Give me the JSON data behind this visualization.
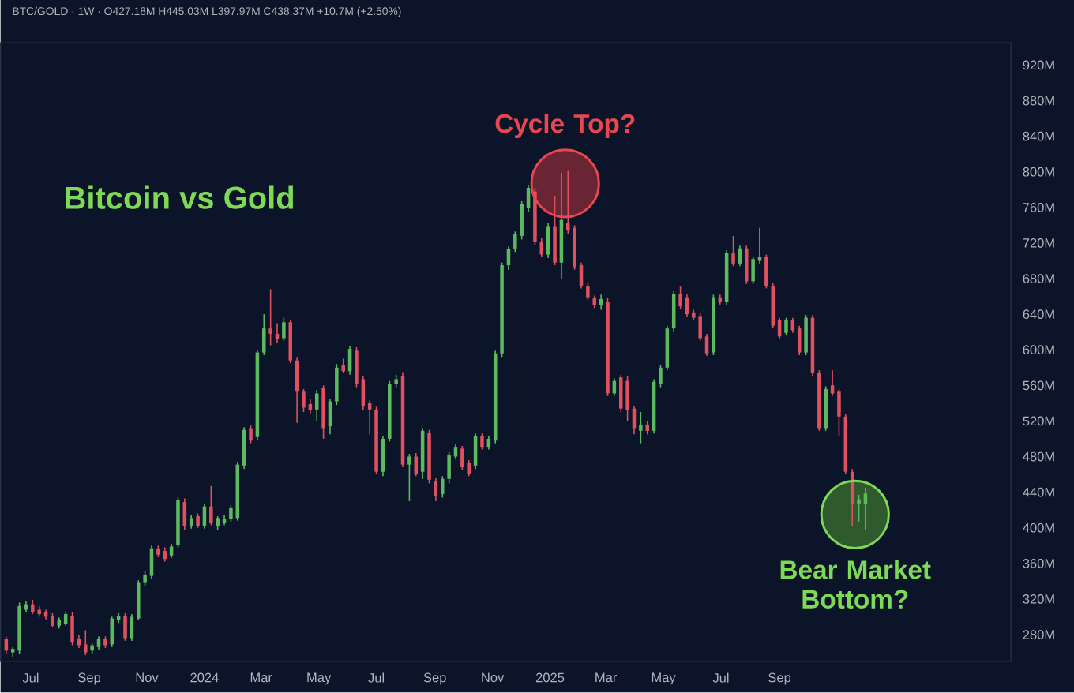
{
  "chart_data": {
    "type": "candlestick",
    "title": "Bitcoin vs Gold",
    "subtitle": "BTC/GOLD · 1W · O427.18M H445.03M L397.97M C438.37M +10.7M (+2.50%)",
    "annotations": [
      {
        "text": "Cycle Top?",
        "x": "2025-01-17",
        "y": 787
      },
      {
        "text": "Bear Market Bottom?",
        "x": "2025-11-20",
        "y": 415
      }
    ],
    "x": [
      "2023-06-05",
      "2023-06-12",
      "2023-06-19",
      "2023-06-26",
      "2023-07-03",
      "2023-07-10",
      "2023-07-17",
      "2023-07-24",
      "2023-07-31",
      "2023-08-07",
      "2023-08-14",
      "2023-08-21",
      "2023-08-28",
      "2023-09-04",
      "2023-09-11",
      "2023-09-18",
      "2023-09-25",
      "2023-10-02",
      "2023-10-09",
      "2023-10-16",
      "2023-10-23",
      "2023-10-30",
      "2023-11-06",
      "2023-11-13",
      "2023-11-20",
      "2023-11-27",
      "2023-12-04",
      "2023-12-11",
      "2023-12-18",
      "2023-12-25",
      "2024-01-01",
      "2024-01-08",
      "2024-01-15",
      "2024-01-22",
      "2024-01-29",
      "2024-02-05",
      "2024-02-12",
      "2024-02-19",
      "2024-02-26",
      "2024-03-04",
      "2024-03-11",
      "2024-03-18",
      "2024-03-25",
      "2024-04-01",
      "2024-04-08",
      "2024-04-15",
      "2024-04-22",
      "2024-04-29",
      "2024-05-06",
      "2024-05-13",
      "2024-05-20",
      "2024-05-27",
      "2024-06-03",
      "2024-06-10",
      "2024-06-17",
      "2024-06-24",
      "2024-07-01",
      "2024-07-08",
      "2024-07-15",
      "2024-07-22",
      "2024-07-29",
      "2024-08-05",
      "2024-08-12",
      "2024-08-19",
      "2024-08-26",
      "2024-09-02",
      "2024-09-09",
      "2024-09-16",
      "2024-09-23",
      "2024-09-30",
      "2024-10-07",
      "2024-10-14",
      "2024-10-21",
      "2024-10-28",
      "2024-11-04",
      "2024-11-11",
      "2024-11-18",
      "2024-11-25",
      "2024-12-02",
      "2024-12-09",
      "2024-12-16",
      "2024-12-23",
      "2024-12-30",
      "2025-01-06",
      "2025-01-13",
      "2025-01-20",
      "2025-01-27",
      "2025-02-03",
      "2025-02-10",
      "2025-02-17",
      "2025-02-24",
      "2025-03-03",
      "2025-03-10",
      "2025-03-17",
      "2025-03-24",
      "2025-03-31",
      "2025-04-07",
      "2025-04-14",
      "2025-04-21",
      "2025-04-28",
      "2025-05-05",
      "2025-05-12",
      "2025-05-19",
      "2025-05-26",
      "2025-06-02",
      "2025-06-09",
      "2025-06-16",
      "2025-06-23",
      "2025-06-30",
      "2025-07-07",
      "2025-07-14",
      "2025-07-21",
      "2025-07-28",
      "2025-08-04",
      "2025-08-11",
      "2025-08-18",
      "2025-08-25",
      "2025-09-01",
      "2025-09-08",
      "2025-09-15",
      "2025-09-22",
      "2025-09-29",
      "2025-10-06",
      "2025-10-13",
      "2025-10-20",
      "2025-10-27",
      "2025-11-03",
      "2025-11-10",
      "2025-11-17",
      "2025-11-24",
      "2025-12-01"
    ],
    "ohlc": [
      [
        275,
        278,
        258,
        262
      ],
      [
        260,
        266,
        255,
        264
      ],
      [
        262,
        316,
        258,
        312
      ],
      [
        308,
        318,
        305,
        314
      ],
      [
        314,
        319,
        303,
        305
      ],
      [
        308,
        312,
        300,
        303
      ],
      [
        305,
        308,
        297,
        300
      ],
      [
        301,
        304,
        288,
        290
      ],
      [
        290,
        299,
        287,
        296
      ],
      [
        292,
        306,
        290,
        303
      ],
      [
        301,
        305,
        268,
        271
      ],
      [
        275,
        280,
        265,
        268
      ],
      [
        269,
        285,
        257,
        260
      ],
      [
        262,
        270,
        258,
        268
      ],
      [
        266,
        278,
        263,
        275
      ],
      [
        275,
        278,
        265,
        268
      ],
      [
        269,
        300,
        266,
        298
      ],
      [
        296,
        304,
        293,
        301
      ],
      [
        301,
        304,
        273,
        276
      ],
      [
        276,
        303,
        273,
        300
      ],
      [
        298,
        341,
        296,
        338
      ],
      [
        338,
        352,
        335,
        347
      ],
      [
        346,
        380,
        343,
        377
      ],
      [
        376,
        380,
        367,
        370
      ],
      [
        374,
        378,
        362,
        365
      ],
      [
        369,
        382,
        366,
        379
      ],
      [
        381,
        434,
        378,
        431
      ],
      [
        429,
        433,
        398,
        402
      ],
      [
        402,
        414,
        399,
        411
      ],
      [
        413,
        416,
        400,
        402
      ],
      [
        402,
        427,
        399,
        424
      ],
      [
        424,
        447,
        403,
        406
      ],
      [
        402,
        413,
        398,
        411
      ],
      [
        406,
        414,
        403,
        410
      ],
      [
        410,
        425,
        407,
        422
      ],
      [
        411,
        474,
        408,
        471
      ],
      [
        470,
        513,
        466,
        510
      ],
      [
        512,
        515,
        495,
        498
      ],
      [
        502,
        600,
        498,
        597
      ],
      [
        597,
        640,
        594,
        624
      ],
      [
        624,
        668,
        605,
        618
      ],
      [
        618,
        630,
        608,
        612
      ],
      [
        613,
        636,
        610,
        631
      ],
      [
        631,
        634,
        585,
        588
      ],
      [
        588,
        592,
        518,
        553
      ],
      [
        553,
        556,
        530,
        535
      ],
      [
        539,
        545,
        528,
        532
      ],
      [
        533,
        555,
        520,
        551
      ],
      [
        557,
        560,
        500,
        512
      ],
      [
        514,
        545,
        505,
        542
      ],
      [
        542,
        584,
        538,
        580
      ],
      [
        583,
        590,
        574,
        576
      ],
      [
        576,
        604,
        572,
        601
      ],
      [
        599,
        603,
        558,
        562
      ],
      [
        567,
        570,
        532,
        537
      ],
      [
        540,
        543,
        505,
        533
      ],
      [
        533,
        536,
        460,
        463
      ],
      [
        463,
        503,
        458,
        500
      ],
      [
        500,
        565,
        497,
        562
      ],
      [
        562,
        572,
        558,
        567
      ],
      [
        571,
        575,
        468,
        471
      ],
      [
        471,
        483,
        430,
        480
      ],
      [
        480,
        484,
        458,
        461
      ],
      [
        463,
        512,
        455,
        509
      ],
      [
        507,
        510,
        450,
        454
      ],
      [
        452,
        456,
        430,
        436
      ],
      [
        438,
        458,
        434,
        455
      ],
      [
        455,
        485,
        450,
        482
      ],
      [
        480,
        494,
        477,
        491
      ],
      [
        489,
        492,
        465,
        468
      ],
      [
        473,
        476,
        458,
        461
      ],
      [
        470,
        506,
        466,
        503
      ],
      [
        503,
        506,
        488,
        491
      ],
      [
        491,
        503,
        488,
        500
      ],
      [
        498,
        599,
        495,
        596
      ],
      [
        596,
        698,
        592,
        695
      ],
      [
        695,
        716,
        690,
        713
      ],
      [
        713,
        733,
        710,
        730
      ],
      [
        728,
        767,
        724,
        764
      ],
      [
        759,
        785,
        755,
        782
      ],
      [
        778,
        782,
        718,
        721
      ],
      [
        721,
        726,
        704,
        707
      ],
      [
        707,
        742,
        703,
        739
      ],
      [
        739,
        773,
        695,
        698
      ],
      [
        698,
        799,
        680,
        746
      ],
      [
        743,
        801,
        730,
        734
      ],
      [
        737,
        740,
        690,
        693
      ],
      [
        695,
        698,
        669,
        672
      ],
      [
        672,
        675,
        656,
        659
      ],
      [
        658,
        661,
        647,
        650
      ],
      [
        650,
        662,
        645,
        657
      ],
      [
        654,
        658,
        548,
        551
      ],
      [
        551,
        568,
        548,
        565
      ],
      [
        569,
        572,
        530,
        534
      ],
      [
        565,
        570,
        520,
        532
      ],
      [
        534,
        537,
        505,
        512
      ],
      [
        509,
        530,
        495,
        516
      ],
      [
        516,
        520,
        505,
        509
      ],
      [
        509,
        567,
        506,
        564
      ],
      [
        562,
        583,
        558,
        580
      ],
      [
        580,
        627,
        577,
        624
      ],
      [
        624,
        666,
        620,
        663
      ],
      [
        663,
        672,
        646,
        649
      ],
      [
        659,
        662,
        637,
        640
      ],
      [
        642,
        645,
        633,
        636
      ],
      [
        638,
        641,
        610,
        613
      ],
      [
        615,
        618,
        593,
        596
      ],
      [
        597,
        662,
        594,
        659
      ],
      [
        659,
        662,
        651,
        654
      ],
      [
        654,
        712,
        650,
        709
      ],
      [
        709,
        728,
        694,
        697
      ],
      [
        697,
        717,
        694,
        714
      ],
      [
        714,
        717,
        674,
        677
      ],
      [
        677,
        705,
        674,
        702
      ],
      [
        700,
        737,
        697,
        704
      ],
      [
        704,
        707,
        669,
        672
      ],
      [
        672,
        675,
        624,
        627
      ],
      [
        633,
        636,
        612,
        615
      ],
      [
        619,
        636,
        616,
        633
      ],
      [
        633,
        636,
        619,
        622
      ],
      [
        624,
        627,
        594,
        597
      ],
      [
        597,
        639,
        594,
        636
      ],
      [
        636,
        639,
        571,
        574
      ],
      [
        574,
        577,
        509,
        512
      ],
      [
        512,
        559,
        509,
        556
      ],
      [
        560,
        577,
        548,
        551
      ],
      [
        553,
        556,
        503,
        525
      ],
      [
        525,
        528,
        460,
        463
      ],
      [
        463,
        466,
        402,
        427
      ],
      [
        427,
        437,
        407,
        432
      ],
      [
        427.18,
        445.03,
        397.97,
        438.37
      ]
    ],
    "xlim": [
      "2023-05-30",
      "2026-05-04"
    ],
    "xticks": [
      {
        "value": "2023-07-01",
        "label": "Jul"
      },
      {
        "value": "2023-09-01",
        "label": "Sep"
      },
      {
        "value": "2023-11-01",
        "label": "Nov"
      },
      {
        "value": "2024-01-01",
        "label": "2024"
      },
      {
        "value": "2024-03-01",
        "label": "Mar"
      },
      {
        "value": "2024-05-01",
        "label": "May"
      },
      {
        "value": "2024-07-01",
        "label": "Jul"
      },
      {
        "value": "2024-09-01",
        "label": "Sep"
      },
      {
        "value": "2024-11-01",
        "label": "Nov"
      },
      {
        "value": "2025-01-01",
        "label": "2025"
      },
      {
        "value": "2025-03-01",
        "label": "Mar"
      },
      {
        "value": "2025-05-01",
        "label": "May"
      },
      {
        "value": "2025-07-01",
        "label": "Jul"
      },
      {
        "value": "2025-09-01",
        "label": "Sep"
      }
    ],
    "ylim": [
      250,
      945
    ],
    "yticks": [
      {
        "value": 280,
        "label": "280M"
      },
      {
        "value": 320,
        "label": "320M"
      },
      {
        "value": 360,
        "label": "360M"
      },
      {
        "value": 400,
        "label": "400M"
      },
      {
        "value": 440,
        "label": "440M"
      },
      {
        "value": 480,
        "label": "480M"
      },
      {
        "value": 520,
        "label": "520M"
      },
      {
        "value": 560,
        "label": "560M"
      },
      {
        "value": 600,
        "label": "600M"
      },
      {
        "value": 640,
        "label": "640M"
      },
      {
        "value": 680,
        "label": "680M"
      },
      {
        "value": 720,
        "label": "720M"
      },
      {
        "value": 760,
        "label": "760M"
      },
      {
        "value": 800,
        "label": "800M"
      },
      {
        "value": 840,
        "label": "840M"
      },
      {
        "value": 880,
        "label": "880M"
      },
      {
        "value": 920,
        "label": "920M"
      }
    ]
  }
}
